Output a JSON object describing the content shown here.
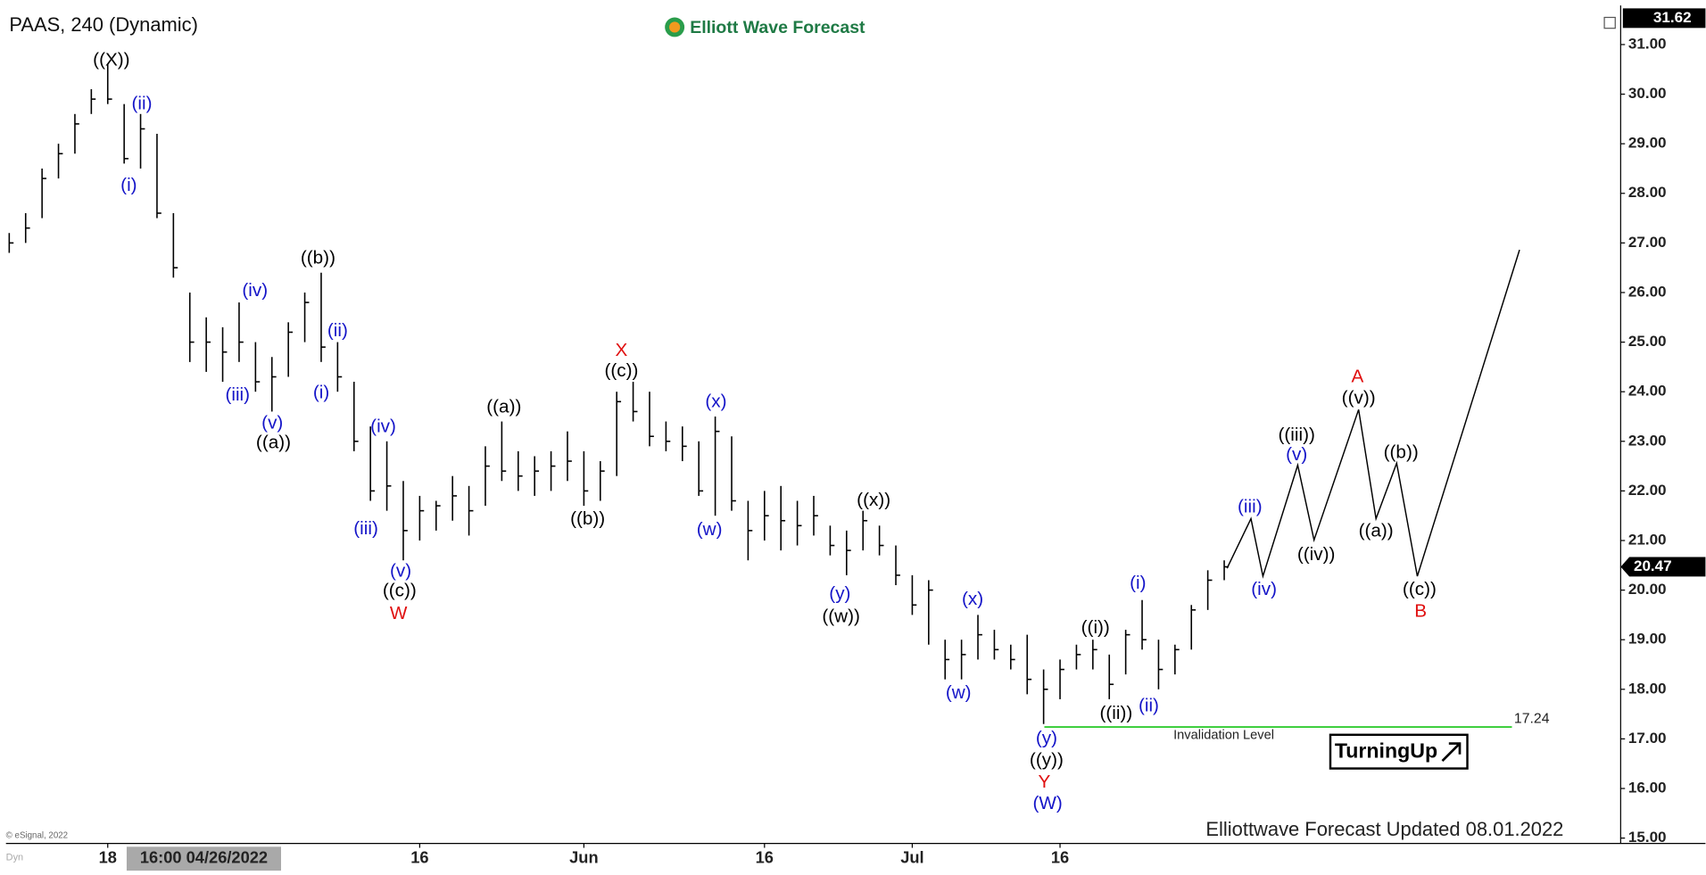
{
  "chart_data": {
    "type": "ohlc",
    "title": "PAAS, 240 (Dynamic)",
    "brand": "Elliott Wave Forecast",
    "footer": "Elliottwave Forecast Updated 08.01.2022",
    "badge": "TurningUp",
    "copyright": "© eSignal, 2022",
    "corner_label": "Dyn",
    "cursor_label": "16:00 04/26/2022",
    "bar_color": "#000000",
    "categories": [
      null,
      null,
      null,
      null,
      null,
      null,
      "18",
      null,
      null,
      null,
      null,
      null,
      null,
      null,
      null,
      null,
      null,
      null,
      null,
      null,
      null,
      null,
      null,
      null,
      null,
      "16",
      null,
      null,
      null,
      null,
      null,
      null,
      null,
      null,
      null,
      "Jun",
      null,
      null,
      null,
      null,
      null,
      null,
      null,
      null,
      null,
      null,
      "16",
      null,
      null,
      null,
      null,
      null,
      null,
      null,
      null,
      "Jul",
      null,
      null,
      null,
      null,
      null,
      null,
      null,
      null,
      "16",
      null,
      null,
      null,
      null,
      null,
      null,
      null,
      null,
      null,
      null
    ],
    "high": [
      27.2,
      27.6,
      28.5,
      29.0,
      29.6,
      30.1,
      30.6,
      29.8,
      29.6,
      29.2,
      27.6,
      26.0,
      25.5,
      25.3,
      25.8,
      25.0,
      24.7,
      25.4,
      26.0,
      26.4,
      25.0,
      24.2,
      23.3,
      23.0,
      22.2,
      21.9,
      21.8,
      22.3,
      22.1,
      22.9,
      23.4,
      22.8,
      22.7,
      22.8,
      23.2,
      22.8,
      22.6,
      24.0,
      24.2,
      24.0,
      23.4,
      23.3,
      23.0,
      23.5,
      23.1,
      21.8,
      22.0,
      22.1,
      21.8,
      21.9,
      21.3,
      21.2,
      21.6,
      21.3,
      20.9,
      20.3,
      20.2,
      19.0,
      19.0,
      19.5,
      19.2,
      18.9,
      19.1,
      18.4,
      18.6,
      18.9,
      19.0,
      18.7,
      19.2,
      19.8,
      19.0,
      18.9,
      19.7,
      20.4,
      20.6
    ],
    "low": [
      26.8,
      27.0,
      27.5,
      28.3,
      28.8,
      29.6,
      29.8,
      28.6,
      28.5,
      27.5,
      26.3,
      24.6,
      24.4,
      24.2,
      24.6,
      24.0,
      23.6,
      24.3,
      25.0,
      24.6,
      24.0,
      22.8,
      21.8,
      21.6,
      20.6,
      21.0,
      21.2,
      21.4,
      21.1,
      21.7,
      22.2,
      22.0,
      21.9,
      22.0,
      22.2,
      21.7,
      21.8,
      22.3,
      23.4,
      22.9,
      22.8,
      22.6,
      21.9,
      21.5,
      21.6,
      20.6,
      21.0,
      20.8,
      20.9,
      21.1,
      20.7,
      20.3,
      20.8,
      20.7,
      20.1,
      19.5,
      18.9,
      18.2,
      18.2,
      18.6,
      18.6,
      18.4,
      17.9,
      17.3,
      17.8,
      18.4,
      18.4,
      17.8,
      18.3,
      18.8,
      18.0,
      18.3,
      18.8,
      19.6,
      20.2
    ],
    "close": [
      27.0,
      27.3,
      28.3,
      28.8,
      29.4,
      29.9,
      29.9,
      28.7,
      29.3,
      27.6,
      26.5,
      25.0,
      25.0,
      24.8,
      25.0,
      24.2,
      24.3,
      25.2,
      25.8,
      24.9,
      24.3,
      23.0,
      22.0,
      22.1,
      21.2,
      21.6,
      21.7,
      21.9,
      21.6,
      22.5,
      22.4,
      22.3,
      22.4,
      22.5,
      22.6,
      22.0,
      22.4,
      23.8,
      23.6,
      23.1,
      23.0,
      22.9,
      22.0,
      23.2,
      21.8,
      21.2,
      21.5,
      21.4,
      21.3,
      21.5,
      20.9,
      20.8,
      21.4,
      20.9,
      20.3,
      19.7,
      20.0,
      18.6,
      18.7,
      19.1,
      18.8,
      18.6,
      18.2,
      18.0,
      18.4,
      18.7,
      18.8,
      18.1,
      19.1,
      19.0,
      18.4,
      18.8,
      19.6,
      20.2,
      20.47
    ],
    "projection": {
      "color": "#000000",
      "values": [
        20.44,
        21.44,
        20.28,
        22.52,
        21.01,
        23.64,
        21.44,
        22.56,
        20.28,
        26.86
      ]
    },
    "invalidation": {
      "value": 17.24,
      "label": "Invalidation Level",
      "color": "#33cc33"
    },
    "ylim": [
      14.9,
      31.62
    ],
    "yticks": [
      {
        "value": 15,
        "label": "15.00"
      },
      {
        "value": 16,
        "label": "16.00"
      },
      {
        "value": 17,
        "label": "17.00"
      },
      {
        "value": 18,
        "label": "18.00"
      },
      {
        "value": 19,
        "label": "19.00"
      },
      {
        "value": 20,
        "label": "20.00"
      },
      {
        "value": 21,
        "label": "21.00"
      },
      {
        "value": 22,
        "label": "22.00"
      },
      {
        "value": 23,
        "label": "23.00"
      },
      {
        "value": 24,
        "label": "24.00"
      },
      {
        "value": 25,
        "label": "25.00"
      },
      {
        "value": 26,
        "label": "26.00"
      },
      {
        "value": 27,
        "label": "27.00"
      },
      {
        "value": 28,
        "label": "28.00"
      },
      {
        "value": 29,
        "label": "29.00"
      },
      {
        "value": 30,
        "label": "30.00"
      },
      {
        "value": 31,
        "label": "31.00"
      }
    ],
    "annotations": [
      {
        "text": "((X))",
        "color": "#000000"
      },
      {
        "text": "(ii)",
        "color": "#1414c8"
      },
      {
        "text": "(i)",
        "color": "#1414c8"
      },
      {
        "text": "(iv)",
        "color": "#1414c8"
      },
      {
        "text": "(iii)",
        "color": "#1414c8"
      },
      {
        "text": "(v)",
        "color": "#1414c8"
      },
      {
        "text": "((a))",
        "color": "#000000"
      },
      {
        "text": "((b))",
        "color": "#000000"
      },
      {
        "text": "(ii)",
        "color": "#1414c8"
      },
      {
        "text": "(i)",
        "color": "#1414c8"
      },
      {
        "text": "(iv)",
        "color": "#1414c8"
      },
      {
        "text": "(iii)",
        "color": "#1414c8"
      },
      {
        "text": "(v)",
        "color": "#1414c8"
      },
      {
        "text": "((c))",
        "color": "#000000"
      },
      {
        "text": "W",
        "color": "#e01010"
      },
      {
        "text": "((a))",
        "color": "#000000"
      },
      {
        "text": "((b))",
        "color": "#000000"
      },
      {
        "text": "X",
        "color": "#e01010"
      },
      {
        "text": "((c))",
        "color": "#000000"
      },
      {
        "text": "(x)",
        "color": "#1414c8"
      },
      {
        "text": "(w)",
        "color": "#1414c8"
      },
      {
        "text": "((x))",
        "color": "#000000"
      },
      {
        "text": "(y)",
        "color": "#1414c8"
      },
      {
        "text": "((w))",
        "color": "#000000"
      },
      {
        "text": "(x)",
        "color": "#1414c8"
      },
      {
        "text": "(w)",
        "color": "#1414c8"
      },
      {
        "text": "((i))",
        "color": "#000000"
      },
      {
        "text": "((ii))",
        "color": "#000000"
      },
      {
        "text": "(i)",
        "color": "#1414c8"
      },
      {
        "text": "(ii)",
        "color": "#1414c8"
      },
      {
        "text": "(y)",
        "color": "#1414c8"
      },
      {
        "text": "((y))",
        "color": "#000000"
      },
      {
        "text": "Y",
        "color": "#e01010"
      },
      {
        "text": "(W)",
        "color": "#1414c8"
      },
      {
        "text": "(iii)",
        "color": "#1414c8"
      },
      {
        "text": "(iv)",
        "color": "#1414c8"
      },
      {
        "text": "((iii))",
        "color": "#000000"
      },
      {
        "text": "(v)",
        "color": "#1414c8"
      },
      {
        "text": "((iv))",
        "color": "#000000"
      },
      {
        "text": "A",
        "color": "#e01010"
      },
      {
        "text": "((v))",
        "color": "#000000"
      },
      {
        "text": "((a))",
        "color": "#000000"
      },
      {
        "text": "((b))",
        "color": "#000000"
      },
      {
        "text": "((c))",
        "color": "#000000"
      },
      {
        "text": "B",
        "color": "#e01010"
      }
    ]
  }
}
